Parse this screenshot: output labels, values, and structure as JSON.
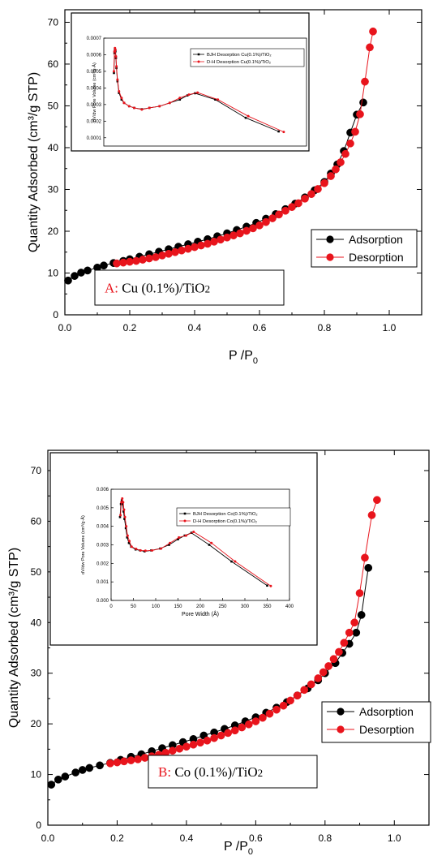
{
  "chart_data": [
    {
      "type": "line",
      "panel_label": "A:",
      "panel_text": "Cu (0.1%)/TiO",
      "panel_sub": "2",
      "xlabel": "P /P",
      "xlabel_sub": "0",
      "ylabel": "Quantity Adsorbed (cm³/g STP)",
      "xlim": [
        0,
        1.1
      ],
      "ylim": [
        0,
        73
      ],
      "xticks": [
        "0.0",
        "0.2",
        "0.4",
        "0.6",
        "0.8",
        "1.0"
      ],
      "yticks": [
        "0",
        "10",
        "20",
        "30",
        "40",
        "50",
        "60",
        "70"
      ],
      "legend_position": "bottom-right",
      "series": [
        {
          "name": "Adsorption",
          "color": "#000000",
          "x": [
            0.01,
            0.03,
            0.05,
            0.07,
            0.1,
            0.12,
            0.15,
            0.18,
            0.2,
            0.23,
            0.26,
            0.29,
            0.32,
            0.35,
            0.38,
            0.41,
            0.44,
            0.47,
            0.5,
            0.53,
            0.56,
            0.59,
            0.62,
            0.65,
            0.68,
            0.71,
            0.74,
            0.77,
            0.8,
            0.82,
            0.84,
            0.86,
            0.88,
            0.9,
            0.92
          ],
          "y": [
            8.2,
            9.3,
            10.1,
            10.6,
            11.3,
            11.8,
            12.4,
            12.9,
            13.3,
            13.9,
            14.5,
            15.1,
            15.7,
            16.3,
            16.9,
            17.5,
            18.1,
            18.8,
            19.5,
            20.3,
            21.1,
            22.0,
            23.0,
            24.1,
            25.3,
            26.6,
            28.1,
            29.8,
            31.8,
            33.8,
            36.0,
            39.2,
            43.6,
            47.9,
            50.8
          ]
        },
        {
          "name": "Desorption",
          "color": "#e8141c",
          "x": [
            0.95,
            0.94,
            0.925,
            0.91,
            0.895,
            0.88,
            0.865,
            0.85,
            0.835,
            0.82,
            0.8,
            0.78,
            0.76,
            0.74,
            0.72,
            0.7,
            0.68,
            0.66,
            0.64,
            0.62,
            0.6,
            0.58,
            0.56,
            0.54,
            0.52,
            0.5,
            0.48,
            0.46,
            0.44,
            0.42,
            0.4,
            0.38,
            0.36,
            0.34,
            0.32,
            0.3,
            0.28,
            0.26,
            0.24,
            0.22,
            0.2,
            0.18,
            0.16
          ],
          "y": [
            67.8,
            64.0,
            55.8,
            48.0,
            43.8,
            41.0,
            38.5,
            36.5,
            34.8,
            33.2,
            31.5,
            30.1,
            28.9,
            27.8,
            26.7,
            25.8,
            24.9,
            24.0,
            23.1,
            22.2,
            21.4,
            20.7,
            20.1,
            19.5,
            19.0,
            18.5,
            18.0,
            17.5,
            17.0,
            16.6,
            16.2,
            15.8,
            15.4,
            15.0,
            14.6,
            14.2,
            13.8,
            13.5,
            13.2,
            12.9,
            12.7,
            12.5,
            12.3
          ]
        }
      ],
      "inset": {
        "ylabel": "dV/dw Pore Volume (cm³/g·Å)",
        "xlim": [
          0,
          400
        ],
        "ylim": [
          5e-05,
          0.0007
        ],
        "yticks": [
          "0.0001",
          "0.0002",
          "0.0003",
          "0.0004",
          "0.0005",
          "0.0006",
          "0.0007"
        ],
        "legend": [
          {
            "name": "BJH Desorption Cu(0.1%)/TiO₂",
            "color": "#000000",
            "marker": "square"
          },
          {
            "name": "D-H Desorption Cu(0.1%)/TiO₂",
            "color": "#e8141c",
            "marker": "circle"
          }
        ],
        "series": [
          {
            "name": "BJH Desorption Cu(0.1%)/TiO₂",
            "color": "#000000",
            "x": [
              20,
              21,
              22,
              23,
              24,
              25,
              27,
              30,
              35,
              40,
              50,
              60,
              75,
              90,
              110,
              130,
              150,
              165,
              180,
              220,
              280,
              345
            ],
            "y": [
              0.00049,
              0.00061,
              0.00063,
              0.00062,
              0.00058,
              0.00052,
              0.00044,
              0.00037,
              0.00033,
              0.00031,
              0.00029,
              0.00028,
              0.000272,
              0.00028,
              0.00029,
              0.00031,
              0.00033,
              0.000355,
              0.000368,
              0.00033,
              0.00022,
              0.000138
            ]
          },
          {
            "name": "D-H Desorption Cu(0.1%)/TiO₂",
            "color": "#e8141c",
            "x": [
              20,
              21,
              22,
              23,
              24,
              25,
              27,
              30,
              35,
              40,
              50,
              60,
              75,
              90,
              110,
              130,
              150,
              168,
              185,
              225,
              285,
              355
            ],
            "y": [
              0.0005,
              0.00062,
              0.00064,
              0.00063,
              0.00059,
              0.00053,
              0.00045,
              0.00038,
              0.00034,
              0.00031,
              0.00029,
              0.00028,
              0.00027,
              0.00028,
              0.00029,
              0.00031,
              0.00034,
              0.00036,
              0.000372,
              0.00033,
              0.00023,
              0.000135
            ]
          }
        ]
      }
    },
    {
      "type": "line",
      "panel_label": "B:",
      "panel_text": "Co (0.1%)/TiO",
      "panel_sub": "2",
      "xlabel": "P /P",
      "xlabel_sub": "0",
      "ylabel": "Quantity Adsorbed (cm³/g STP)",
      "xlim": [
        0,
        1.1
      ],
      "ylim": [
        0,
        74
      ],
      "xticks": [
        "0.0",
        "0.2",
        "0.4",
        "0.6",
        "0.8",
        "1.0"
      ],
      "yticks": [
        "0",
        "10",
        "20",
        "30",
        "40",
        "50",
        "60",
        "70"
      ],
      "legend_position": "bottom-right",
      "series": [
        {
          "name": "Adsorption",
          "color": "#000000",
          "x": [
            0.01,
            0.03,
            0.05,
            0.08,
            0.1,
            0.12,
            0.15,
            0.18,
            0.21,
            0.24,
            0.27,
            0.3,
            0.33,
            0.36,
            0.39,
            0.42,
            0.45,
            0.48,
            0.51,
            0.54,
            0.57,
            0.6,
            0.63,
            0.66,
            0.69,
            0.72,
            0.75,
            0.78,
            0.8,
            0.83,
            0.85,
            0.87,
            0.89,
            0.905,
            0.925
          ],
          "y": [
            8.0,
            9.0,
            9.6,
            10.4,
            10.9,
            11.3,
            11.8,
            12.3,
            12.9,
            13.5,
            14.0,
            14.6,
            15.2,
            15.8,
            16.4,
            17.0,
            17.7,
            18.3,
            19.0,
            19.7,
            20.5,
            21.3,
            22.2,
            23.2,
            24.3,
            25.6,
            27.0,
            28.6,
            30.0,
            32.0,
            34.0,
            35.8,
            38.0,
            41.5,
            50.8
          ]
        },
        {
          "name": "Desorption",
          "color": "#e8141c",
          "x": [
            0.95,
            0.935,
            0.915,
            0.9,
            0.885,
            0.87,
            0.855,
            0.84,
            0.825,
            0.81,
            0.795,
            0.78,
            0.76,
            0.74,
            0.72,
            0.7,
            0.68,
            0.66,
            0.64,
            0.62,
            0.6,
            0.58,
            0.56,
            0.54,
            0.52,
            0.5,
            0.48,
            0.46,
            0.44,
            0.42,
            0.4,
            0.38,
            0.36,
            0.34,
            0.32,
            0.3,
            0.28,
            0.26,
            0.24,
            0.22,
            0.2,
            0.18
          ],
          "y": [
            64.2,
            61.2,
            52.8,
            45.8,
            40.0,
            38.0,
            36.0,
            34.2,
            32.8,
            31.4,
            30.2,
            29.0,
            27.8,
            26.7,
            25.6,
            24.6,
            23.6,
            22.8,
            22.0,
            21.2,
            20.5,
            19.9,
            19.3,
            18.7,
            18.2,
            17.7,
            17.2,
            16.7,
            16.3,
            15.9,
            15.5,
            15.1,
            14.7,
            14.3,
            13.9,
            13.6,
            13.3,
            13.0,
            12.8,
            12.6,
            12.4,
            12.2
          ]
        }
      ],
      "inset": {
        "xlabel": "Pore Width (Å)",
        "ylabel": "dV/dw Pore Volume (cm³/g·Å)",
        "xlim": [
          0,
          400
        ],
        "ylim": [
          0,
          0.006
        ],
        "xticks": [
          "0",
          "50",
          "100",
          "150",
          "200",
          "250",
          "300",
          "350",
          "400"
        ],
        "yticks": [
          "0.000",
          "0.001",
          "0.002",
          "0.003",
          "0.004",
          "0.005",
          "0.006"
        ],
        "legend": [
          {
            "name": "BJH Desorption Co(0.1%)/TiO₂",
            "color": "#000000",
            "marker": "square"
          },
          {
            "name": "D-H Desorption Co(0.1%)/TiO₂",
            "color": "#e8141c",
            "marker": "circle"
          }
        ],
        "series": [
          {
            "name": "BJH Desorption Co(0.1%)/TiO₂",
            "color": "#000000",
            "x": [
              20,
              22,
              24,
              26,
              28,
              30,
              33,
              36,
              40,
              45,
              55,
              65,
              75,
              90,
              110,
              130,
              150,
              165,
              180,
              220,
              270,
              350
            ],
            "y": [
              0.0045,
              0.0052,
              0.0054,
              0.0052,
              0.0048,
              0.0044,
              0.0039,
              0.0034,
              0.0031,
              0.0029,
              0.00275,
              0.0027,
              0.00265,
              0.0027,
              0.0028,
              0.003,
              0.0033,
              0.0035,
              0.00365,
              0.003,
              0.0021,
              0.0008
            ]
          },
          {
            "name": "D-H Desorption Co(0.1%)/TiO₂",
            "color": "#e8141c",
            "x": [
              21,
              23,
              25,
              27,
              29,
              31,
              34,
              37,
              41,
              46,
              56,
              66,
              77,
              92,
              112,
              132,
              152,
              168,
              185,
              225,
              278,
              358
            ],
            "y": [
              0.0046,
              0.0053,
              0.0055,
              0.0053,
              0.0049,
              0.0045,
              0.004,
              0.0035,
              0.0032,
              0.0029,
              0.00278,
              0.0027,
              0.00268,
              0.0027,
              0.0028,
              0.0031,
              0.0034,
              0.0035,
              0.0037,
              0.0031,
              0.0021,
              0.00078
            ]
          }
        ]
      }
    }
  ]
}
